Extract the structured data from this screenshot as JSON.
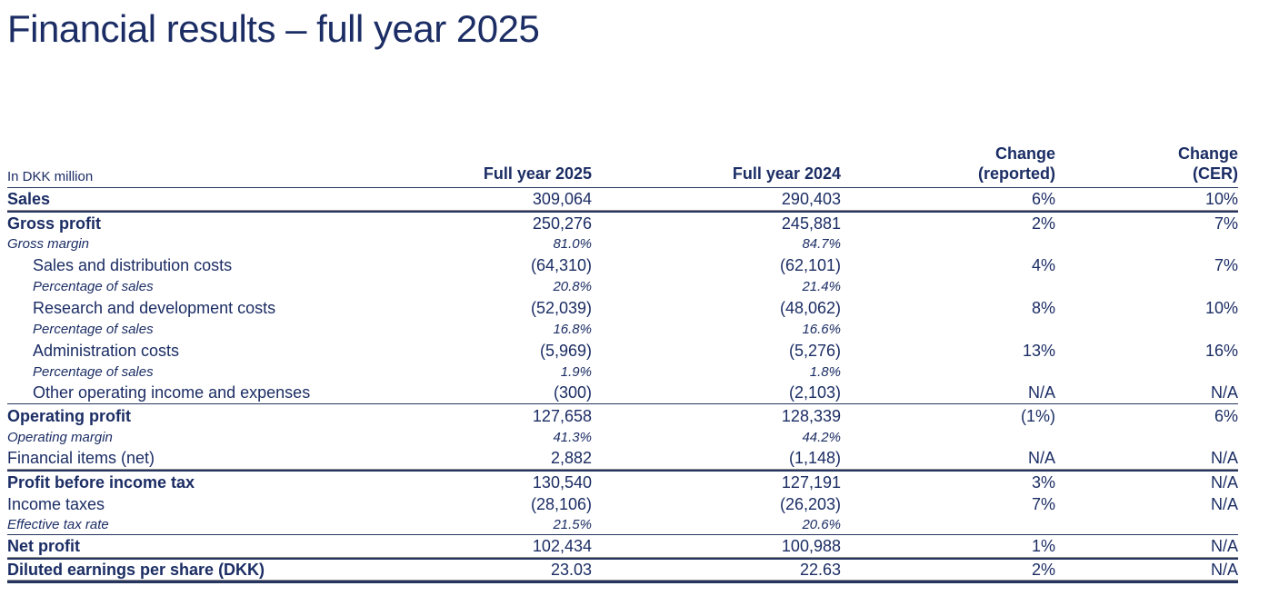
{
  "page": {
    "title": "Financial results – full year 2025"
  },
  "colors": {
    "text_navy": "#1b2d64",
    "rule_navy": "#25355f",
    "rule_gray": "#8e8e8e",
    "background": "#ffffff"
  },
  "table": {
    "unit_label": "In DKK million",
    "columns": [
      "Full year 2025",
      "Full year 2024",
      "Change\n(reported)",
      "Change\n(CER)"
    ],
    "rows": [
      {
        "label": "Sales",
        "type": "total",
        "indent": false,
        "values": [
          "309,064",
          "290,403",
          "6%",
          "10%"
        ],
        "rule": "section"
      },
      {
        "label": "Gross profit",
        "type": "total",
        "indent": false,
        "values": [
          "250,276",
          "245,881",
          "2%",
          "7%"
        ],
        "rule": "none"
      },
      {
        "label": "Gross margin",
        "type": "ratio",
        "indent": false,
        "values": [
          "81.0%",
          "84.7%",
          "",
          ""
        ],
        "rule": "none"
      },
      {
        "label": "Sales and distribution costs",
        "type": "item",
        "indent": true,
        "values": [
          "(64,310)",
          "(62,101)",
          "4%",
          "7%"
        ],
        "rule": "none"
      },
      {
        "label": "Percentage of sales",
        "type": "ratio",
        "indent": true,
        "values": [
          "20.8%",
          "21.4%",
          "",
          ""
        ],
        "rule": "none"
      },
      {
        "label": "Research and development costs",
        "type": "item",
        "indent": true,
        "values": [
          "(52,039)",
          "(48,062)",
          "8%",
          "10%"
        ],
        "rule": "none"
      },
      {
        "label": "Percentage of sales",
        "type": "ratio",
        "indent": true,
        "values": [
          "16.8%",
          "16.6%",
          "",
          ""
        ],
        "rule": "none"
      },
      {
        "label": "Administration costs",
        "type": "item",
        "indent": true,
        "values": [
          "(5,969)",
          "(5,276)",
          "13%",
          "16%"
        ],
        "rule": "none"
      },
      {
        "label": "Percentage of sales",
        "type": "ratio",
        "indent": true,
        "values": [
          "1.9%",
          "1.8%",
          "",
          ""
        ],
        "rule": "none"
      },
      {
        "label": "Other operating income and expenses",
        "type": "item",
        "indent": true,
        "values": [
          "(300)",
          "(2,103)",
          "N/A",
          "N/A"
        ],
        "rule": "single"
      },
      {
        "label": "Operating profit",
        "type": "total",
        "indent": false,
        "values": [
          "127,658",
          "128,339",
          "(1%)",
          "6%"
        ],
        "rule": "none"
      },
      {
        "label": "Operating margin",
        "type": "ratio",
        "indent": false,
        "values": [
          "41.3%",
          "44.2%",
          "",
          ""
        ],
        "rule": "none"
      },
      {
        "label": "Financial items (net)",
        "type": "item",
        "indent": false,
        "values": [
          "2,882",
          "(1,148)",
          "N/A",
          "N/A"
        ],
        "rule": "section"
      },
      {
        "label": "Profit before income tax",
        "type": "total",
        "indent": false,
        "values": [
          "130,540",
          "127,191",
          "3%",
          "N/A"
        ],
        "rule": "none"
      },
      {
        "label": "Income taxes",
        "type": "item",
        "indent": false,
        "values": [
          "(28,106)",
          "(26,203)",
          "7%",
          "N/A"
        ],
        "rule": "none"
      },
      {
        "label": "Effective tax rate",
        "type": "ratio",
        "indent": false,
        "values": [
          "21.5%",
          "20.6%",
          "",
          ""
        ],
        "rule": "single"
      },
      {
        "label": "Net profit",
        "type": "total",
        "indent": false,
        "values": [
          "102,434",
          "100,988",
          "1%",
          "N/A"
        ],
        "rule": "section"
      },
      {
        "label": "Diluted earnings per share (DKK)",
        "type": "total",
        "indent": false,
        "values": [
          "23.03",
          "22.63",
          "2%",
          "N/A"
        ],
        "rule": "end"
      }
    ]
  }
}
